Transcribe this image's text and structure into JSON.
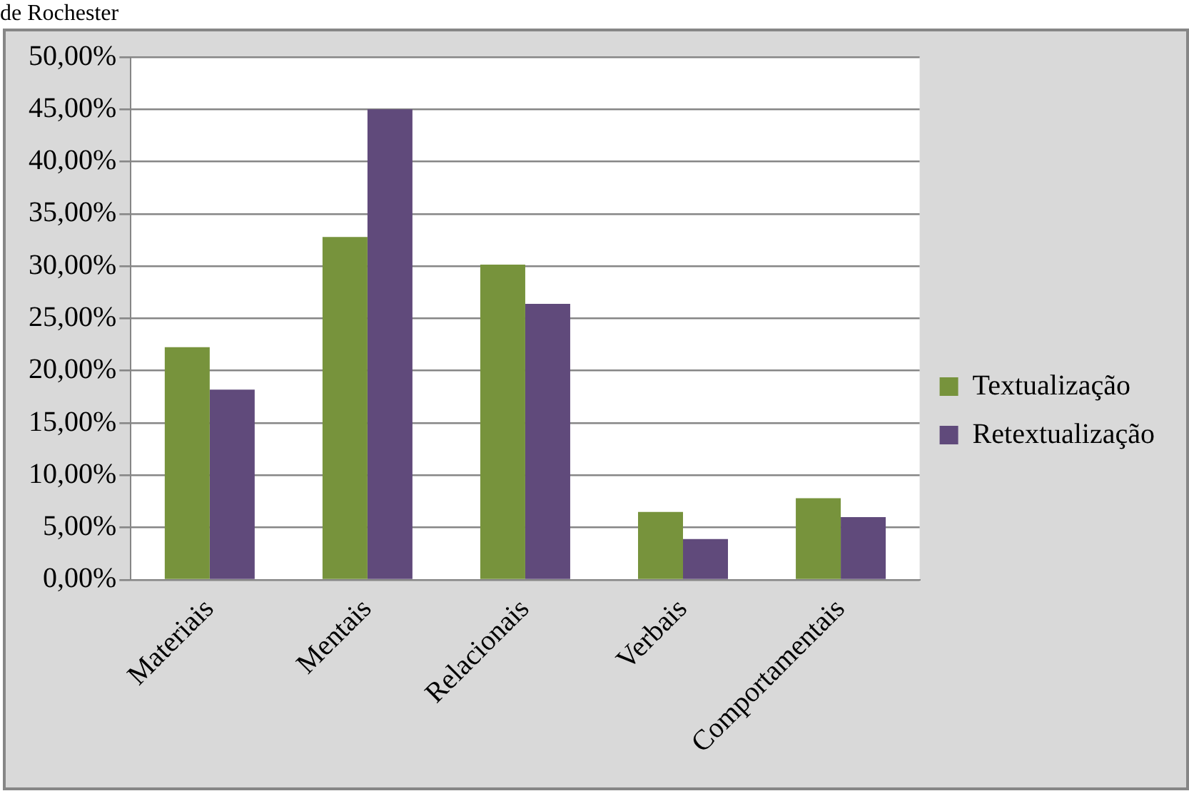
{
  "chart_data": {
    "type": "bar",
    "categories": [
      "Materiais",
      "Mentais",
      "Relacionais",
      "Verbais",
      "Comportamentais"
    ],
    "series": [
      {
        "name": "Textualização",
        "color": "#77933c",
        "values": [
          22.25,
          32.8,
          30.15,
          6.5,
          7.8
        ]
      },
      {
        "name": "Retextualização",
        "color": "#604a7b",
        "values": [
          18.2,
          45.0,
          26.4,
          3.9,
          6.0
        ]
      }
    ],
    "ylim": [
      0,
      50
    ],
    "yticks": [
      {
        "value": 0,
        "label": "0,00%"
      },
      {
        "value": 5,
        "label": "5,00%"
      },
      {
        "value": 10,
        "label": "10,00%"
      },
      {
        "value": 15,
        "label": "15,00%"
      },
      {
        "value": 20,
        "label": "20,00%"
      },
      {
        "value": 25,
        "label": "25,00%"
      },
      {
        "value": 30,
        "label": "30,00%"
      },
      {
        "value": 35,
        "label": "35,00%"
      },
      {
        "value": 40,
        "label": "40,00%"
      },
      {
        "value": 45,
        "label": "45,00%"
      },
      {
        "value": 50,
        "label": "50,00%"
      }
    ],
    "grid": "y",
    "legend": "right",
    "annotations": [
      "de Rochester"
    ]
  }
}
